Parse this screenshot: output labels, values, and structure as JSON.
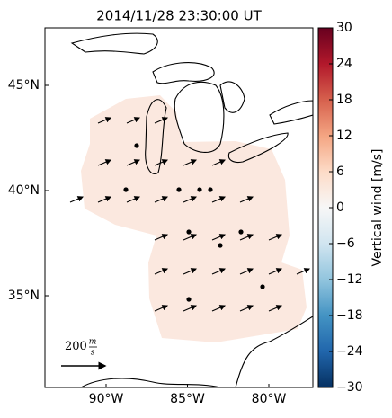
{
  "title": "2014/11/28 23:30:00 UT",
  "lat_ticks": [
    {
      "value": 45,
      "label": "45°N"
    },
    {
      "value": 40,
      "label": "40°N"
    },
    {
      "value": 35,
      "label": "35°N"
    }
  ],
  "lon_ticks": [
    {
      "value": -90,
      "label": "90°W"
    },
    {
      "value": -85,
      "label": "85°W"
    },
    {
      "value": -80,
      "label": "80°W"
    }
  ],
  "colorbar": {
    "label": "Vertical wind [m/s]",
    "lim": [
      -30,
      30
    ],
    "ticks": [
      {
        "value": -30,
        "label": "−30"
      },
      {
        "value": -24,
        "label": "−24"
      },
      {
        "value": -18,
        "label": "−18"
      },
      {
        "value": -12,
        "label": "−12"
      },
      {
        "value": -6,
        "label": "−6"
      },
      0,
      6,
      12,
      18,
      24,
      30
    ]
  },
  "scale": {
    "number": "200",
    "unit_top": "m",
    "unit_bottom": "s"
  }
}
